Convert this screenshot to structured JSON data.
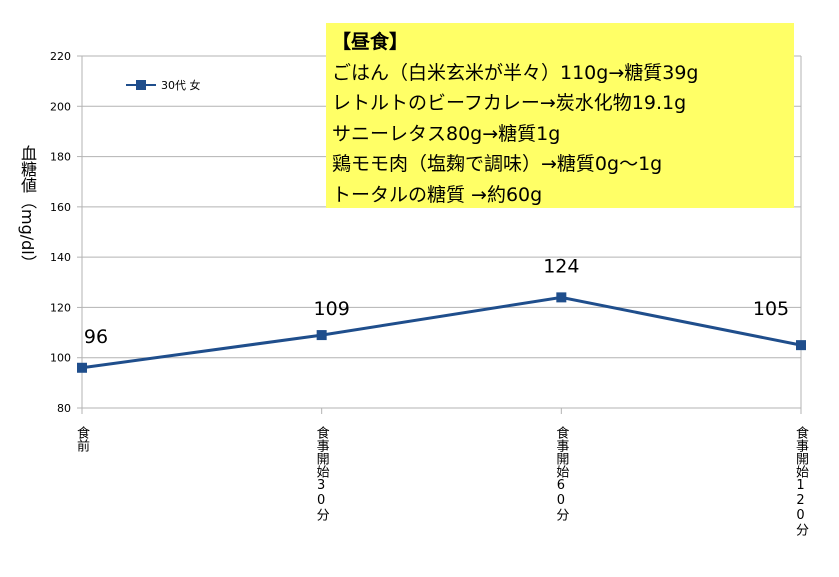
{
  "chart_data": {
    "type": "line",
    "ylabel": "血糖値（mg/dl）",
    "ylim": [
      80,
      220
    ],
    "yticks": [
      80,
      100,
      120,
      140,
      160,
      180,
      200,
      220
    ],
    "categories": [
      "食前",
      "食事開始30分",
      "食事開始60分",
      "食事開始120分"
    ],
    "series": [
      {
        "name": "30代 女",
        "values": [
          96,
          109,
          124,
          105
        ],
        "color": "#1f4e8c"
      }
    ],
    "data_labels": [
      "96",
      "109",
      "124",
      "105"
    ],
    "grid": true,
    "legend": "top-left"
  },
  "note": {
    "lines": [
      "【昼食】",
      "ごはん（白米玄米が半々）110g→糖質39g",
      "レトルトのビーフカレー→炭水化物19.1g",
      "サニーレタス80g→糖質1g",
      "鶏モモ肉（塩麹で調味）→糖質0g〜1g",
      "トータルの糖質 →約60g"
    ],
    "background": "#ffff66"
  }
}
